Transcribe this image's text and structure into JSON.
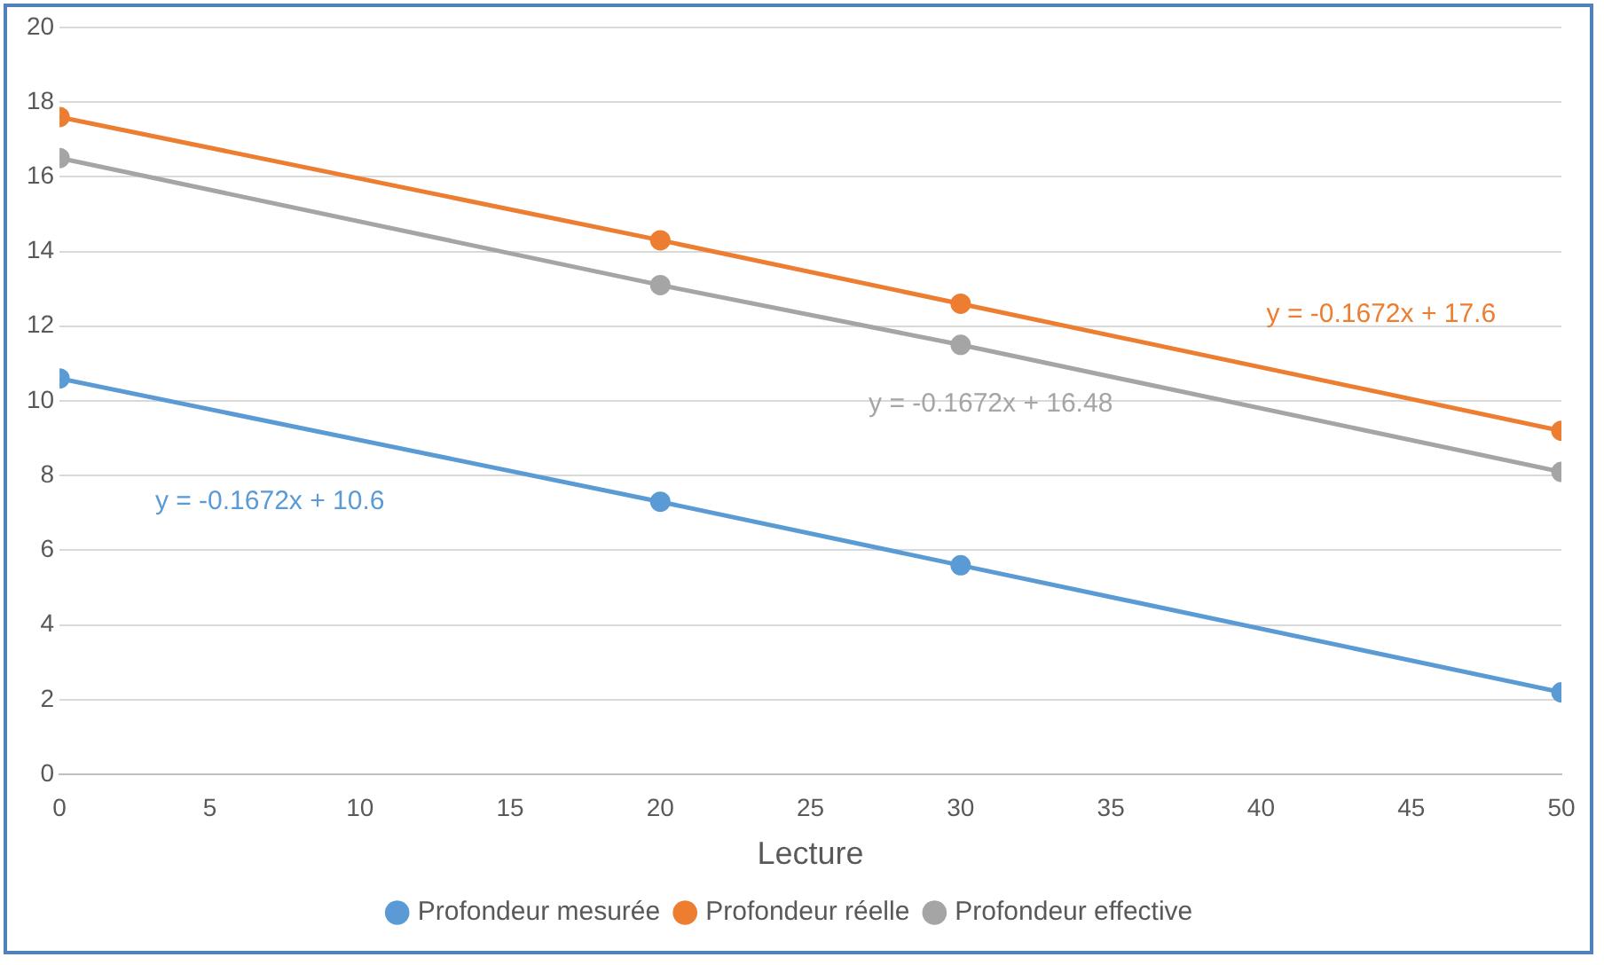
{
  "chart_data": {
    "type": "line",
    "xlabel": "Lecture",
    "x": [
      0,
      20,
      30,
      50
    ],
    "series": [
      {
        "name": "Profondeur mesurée",
        "color": "#5b9bd5",
        "values": [
          10.6,
          7.3,
          5.6,
          2.2
        ]
      },
      {
        "name": "Profondeur réelle",
        "color": "#ed7d31",
        "values": [
          17.6,
          14.3,
          12.6,
          9.2
        ]
      },
      {
        "name": "Profondeur effective",
        "color": "#a5a5a5",
        "values": [
          16.5,
          13.1,
          11.5,
          8.1
        ]
      }
    ],
    "xlim": [
      0,
      50
    ],
    "xticks": [
      0,
      5,
      10,
      15,
      20,
      25,
      30,
      35,
      40,
      45,
      50
    ],
    "ylim": [
      0,
      20
    ],
    "yticks": [
      0,
      2,
      4,
      6,
      8,
      10,
      12,
      14,
      16,
      18,
      20
    ],
    "annotations": [
      "y = -0.1672x + 10.6",
      "y = -0.1672x + 17.6",
      "y = -0.1672x + 16.48"
    ],
    "grid": "y",
    "legend": "bottom",
    "marker": "circle",
    "line_style": "solid"
  }
}
